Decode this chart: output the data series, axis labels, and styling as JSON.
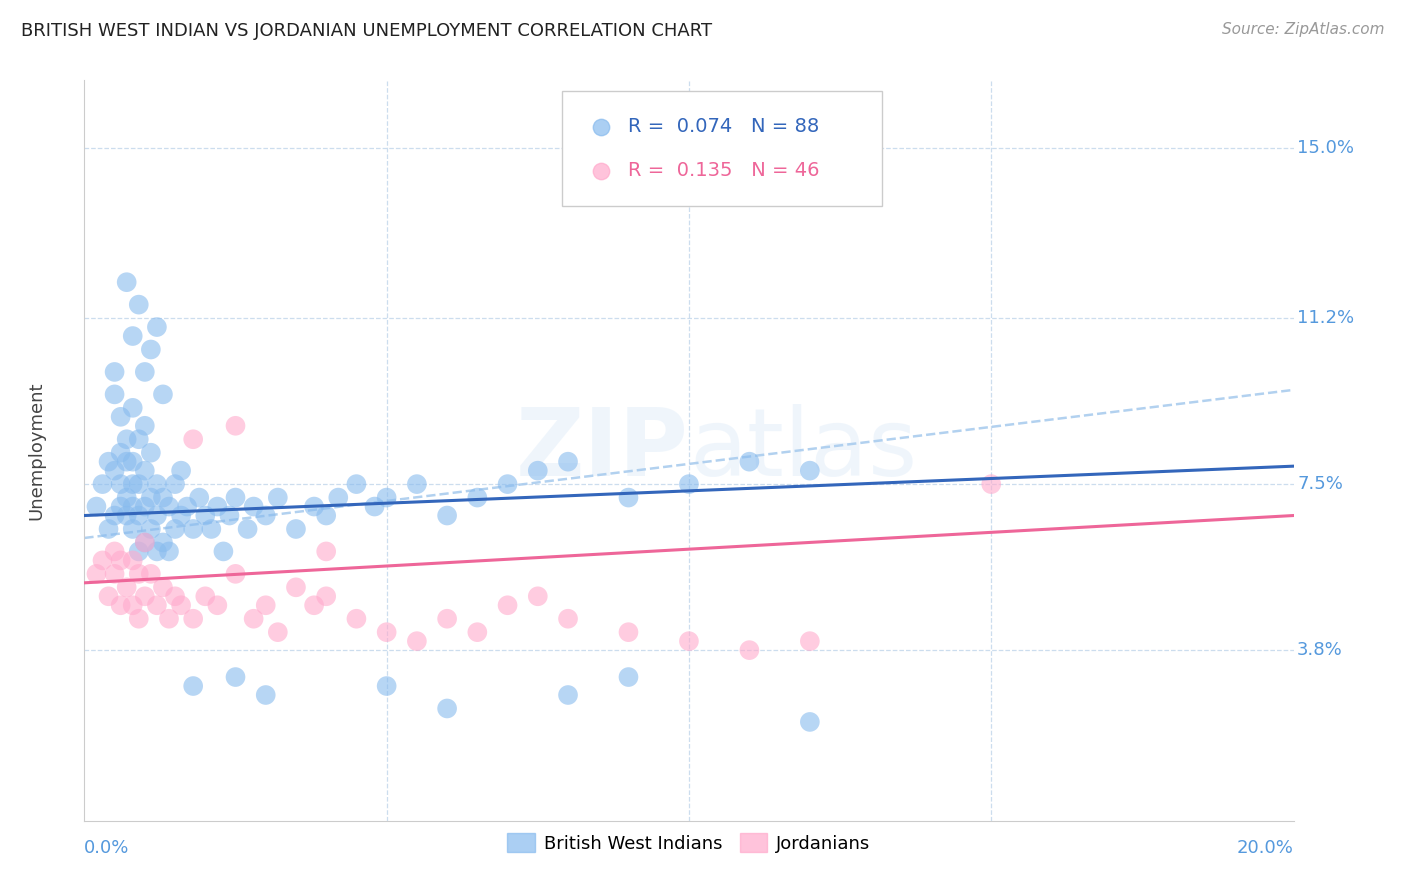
{
  "title": "BRITISH WEST INDIAN VS JORDANIAN UNEMPLOYMENT CORRELATION CHART",
  "source": "Source: ZipAtlas.com",
  "ylabel": "Unemployment",
  "y_tick_labels": [
    "15.0%",
    "11.2%",
    "7.5%",
    "3.8%"
  ],
  "y_tick_values": [
    0.15,
    0.112,
    0.075,
    0.038
  ],
  "xlim": [
    0.0,
    0.2
  ],
  "ylim": [
    0.0,
    0.165
  ],
  "watermark": "ZIPatlas",
  "legend_blue_r": "0.074",
  "legend_blue_n": "88",
  "legend_pink_r": "0.135",
  "legend_pink_n": "46",
  "legend_label_blue": "British West Indians",
  "legend_label_pink": "Jordanians",
  "blue_dot_color": "#88BBEE",
  "pink_dot_color": "#FFAACC",
  "blue_line_color": "#3366BB",
  "pink_line_color": "#EE6699",
  "dashed_line_color": "#AACCEE",
  "axis_label_color": "#5599DD",
  "grid_color": "#CCDDEE",
  "title_color": "#222222",
  "source_color": "#999999",
  "ylabel_color": "#444444",
  "blue_x": [
    0.002,
    0.003,
    0.004,
    0.004,
    0.005,
    0.005,
    0.005,
    0.006,
    0.006,
    0.006,
    0.006,
    0.007,
    0.007,
    0.007,
    0.007,
    0.008,
    0.008,
    0.008,
    0.008,
    0.008,
    0.009,
    0.009,
    0.009,
    0.009,
    0.01,
    0.01,
    0.01,
    0.01,
    0.011,
    0.011,
    0.011,
    0.012,
    0.012,
    0.012,
    0.013,
    0.013,
    0.014,
    0.014,
    0.015,
    0.015,
    0.016,
    0.016,
    0.017,
    0.018,
    0.019,
    0.02,
    0.021,
    0.022,
    0.023,
    0.024,
    0.025,
    0.027,
    0.028,
    0.03,
    0.032,
    0.035,
    0.038,
    0.04,
    0.042,
    0.045,
    0.048,
    0.05,
    0.055,
    0.06,
    0.065,
    0.07,
    0.075,
    0.08,
    0.09,
    0.1,
    0.11,
    0.12,
    0.005,
    0.007,
    0.008,
    0.009,
    0.01,
    0.011,
    0.012,
    0.013,
    0.018,
    0.025,
    0.03,
    0.05,
    0.06,
    0.08,
    0.09,
    0.12
  ],
  "blue_y": [
    0.07,
    0.075,
    0.065,
    0.08,
    0.068,
    0.078,
    0.095,
    0.07,
    0.075,
    0.082,
    0.09,
    0.068,
    0.072,
    0.08,
    0.085,
    0.065,
    0.07,
    0.075,
    0.08,
    0.092,
    0.06,
    0.068,
    0.075,
    0.085,
    0.062,
    0.07,
    0.078,
    0.088,
    0.065,
    0.072,
    0.082,
    0.06,
    0.068,
    0.075,
    0.062,
    0.072,
    0.06,
    0.07,
    0.065,
    0.075,
    0.068,
    0.078,
    0.07,
    0.065,
    0.072,
    0.068,
    0.065,
    0.07,
    0.06,
    0.068,
    0.072,
    0.065,
    0.07,
    0.068,
    0.072,
    0.065,
    0.07,
    0.068,
    0.072,
    0.075,
    0.07,
    0.072,
    0.075,
    0.068,
    0.072,
    0.075,
    0.078,
    0.08,
    0.072,
    0.075,
    0.08,
    0.078,
    0.1,
    0.12,
    0.108,
    0.115,
    0.1,
    0.105,
    0.11,
    0.095,
    0.03,
    0.032,
    0.028,
    0.03,
    0.025,
    0.028,
    0.032,
    0.022
  ],
  "pink_x": [
    0.002,
    0.003,
    0.004,
    0.005,
    0.005,
    0.006,
    0.006,
    0.007,
    0.008,
    0.008,
    0.009,
    0.009,
    0.01,
    0.01,
    0.011,
    0.012,
    0.013,
    0.014,
    0.015,
    0.016,
    0.018,
    0.02,
    0.022,
    0.025,
    0.028,
    0.03,
    0.032,
    0.035,
    0.038,
    0.04,
    0.045,
    0.05,
    0.055,
    0.06,
    0.065,
    0.07,
    0.075,
    0.08,
    0.09,
    0.1,
    0.11,
    0.12,
    0.15,
    0.018,
    0.025,
    0.04
  ],
  "pink_y": [
    0.055,
    0.058,
    0.05,
    0.06,
    0.055,
    0.048,
    0.058,
    0.052,
    0.048,
    0.058,
    0.045,
    0.055,
    0.05,
    0.062,
    0.055,
    0.048,
    0.052,
    0.045,
    0.05,
    0.048,
    0.045,
    0.05,
    0.048,
    0.055,
    0.045,
    0.048,
    0.042,
    0.052,
    0.048,
    0.05,
    0.045,
    0.042,
    0.04,
    0.045,
    0.042,
    0.048,
    0.05,
    0.045,
    0.042,
    0.04,
    0.038,
    0.04,
    0.075,
    0.085,
    0.088,
    0.06
  ]
}
